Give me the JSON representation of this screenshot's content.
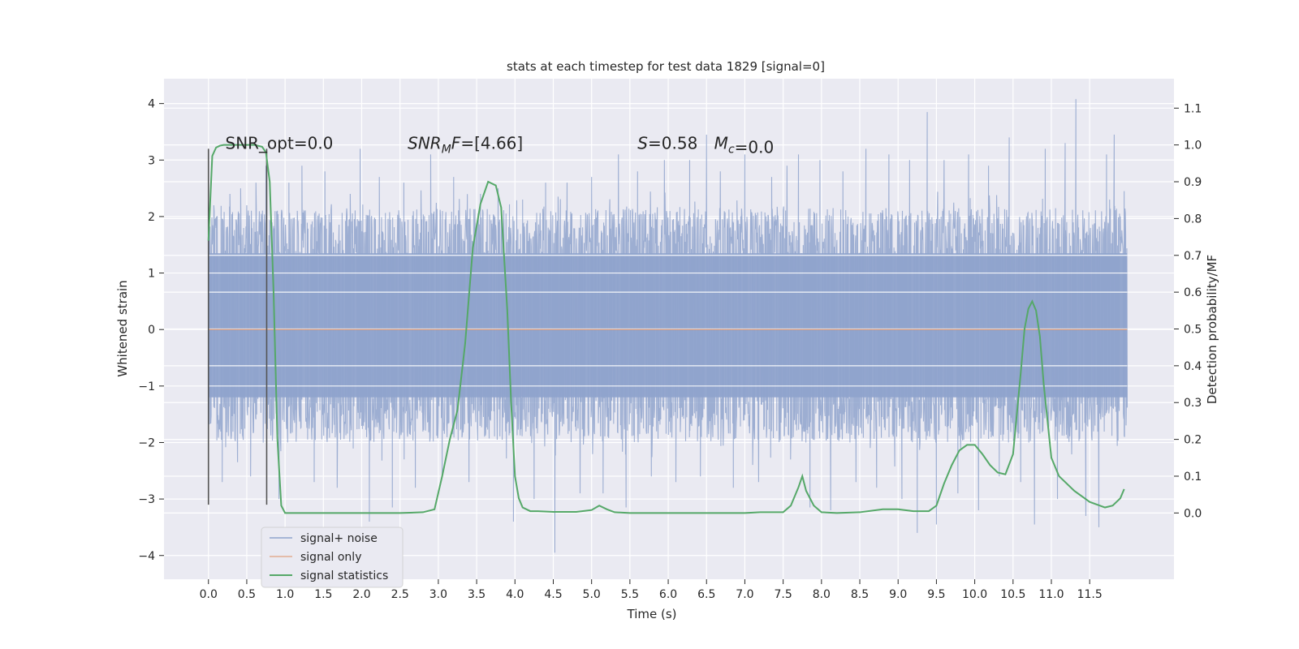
{
  "chart_data": {
    "type": "line",
    "title": "stats at each timestep for test data 1829 [signal=0]",
    "xlabel": "Time (s)",
    "ylabel": "Whitened strain",
    "y2label": "Detection probability/MF",
    "xlim": [
      -0.58,
      12.6
    ],
    "ylim": [
      -4.42,
      4.44
    ],
    "y2lim": [
      -0.18,
      1.18
    ],
    "x_ticks": [
      0.0,
      0.5,
      1.0,
      1.5,
      2.0,
      2.5,
      3.0,
      3.5,
      4.0,
      4.5,
      5.0,
      5.5,
      6.0,
      6.5,
      7.0,
      7.5,
      8.0,
      8.5,
      9.0,
      9.5,
      10.0,
      10.5,
      11.0,
      11.5
    ],
    "x_tick_labels": [
      "0.0",
      "0.5",
      "1.0",
      "1.5",
      "2.0",
      "2.5",
      "3.0",
      "3.5",
      "4.0",
      "4.5",
      "5.0",
      "5.5",
      "6.0",
      "6.5",
      "7.0",
      "7.5",
      "8.0",
      "8.5",
      "9.0",
      "9.5",
      "10.0",
      "10.5",
      "11.0",
      "11.5"
    ],
    "y_ticks": [
      4,
      3,
      2,
      1,
      0,
      -1,
      -2,
      -3,
      -4
    ],
    "y_tick_labels": [
      "4",
      "3",
      "2",
      "1",
      "0",
      "−1",
      "−2",
      "−3",
      "−4"
    ],
    "y2_ticks": [
      1.1,
      1.0,
      0.9,
      0.8,
      0.7,
      0.6,
      0.5,
      0.4,
      0.3,
      0.2,
      0.1,
      0.0
    ],
    "y2_tick_labels": [
      "1.1",
      "1.0",
      "0.9",
      "0.8",
      "0.7",
      "0.6",
      "0.5",
      "0.4",
      "0.3",
      "0.2",
      "0.1",
      "0.0"
    ],
    "grid": true,
    "legend_placement": "lower-left",
    "series": [
      {
        "name": "signal+ noise",
        "color": "#8fa3cc",
        "x_range": [
          0.0,
          11.99
        ],
        "band": {
          "core_min": -1.2,
          "core_max": 1.35,
          "spike_min": -3.95,
          "spike_max": 4.08
        },
        "spikes": [
          {
            "x": 0.07,
            "y": 2.2
          },
          {
            "x": 0.18,
            "y": -2.7
          },
          {
            "x": 0.28,
            "y": 2.4
          },
          {
            "x": 0.42,
            "y": 2.5
          },
          {
            "x": 0.55,
            "y": -2.6
          },
          {
            "x": 0.62,
            "y": 2.6
          },
          {
            "x": 0.75,
            "y": 2.9
          },
          {
            "x": 0.92,
            "y": -3.0
          },
          {
            "x": 1.05,
            "y": 2.6
          },
          {
            "x": 1.22,
            "y": 2.9
          },
          {
            "x": 1.38,
            "y": -2.7
          },
          {
            "x": 1.52,
            "y": 2.8
          },
          {
            "x": 1.68,
            "y": -2.8
          },
          {
            "x": 1.85,
            "y": 2.4
          },
          {
            "x": 1.98,
            "y": 3.2
          },
          {
            "x": 2.1,
            "y": -3.4
          },
          {
            "x": 2.23,
            "y": 2.7
          },
          {
            "x": 2.4,
            "y": -3.15
          },
          {
            "x": 2.55,
            "y": 2.6
          },
          {
            "x": 2.7,
            "y": -2.8
          },
          {
            "x": 2.9,
            "y": 3.1
          },
          {
            "x": 3.05,
            "y": -2.6
          },
          {
            "x": 3.2,
            "y": 2.7
          },
          {
            "x": 3.4,
            "y": -2.7
          },
          {
            "x": 3.55,
            "y": 2.4
          },
          {
            "x": 3.78,
            "y": 2.5
          },
          {
            "x": 3.98,
            "y": -3.4
          },
          {
            "x": 4.1,
            "y": 2.3
          },
          {
            "x": 4.25,
            "y": -3.0
          },
          {
            "x": 4.4,
            "y": 2.6
          },
          {
            "x": 4.52,
            "y": -3.95
          },
          {
            "x": 4.68,
            "y": 2.6
          },
          {
            "x": 4.85,
            "y": -2.9
          },
          {
            "x": 5.0,
            "y": 2.7
          },
          {
            "x": 5.15,
            "y": -2.9
          },
          {
            "x": 5.35,
            "y": 3.1
          },
          {
            "x": 5.45,
            "y": -3.15
          },
          {
            "x": 5.6,
            "y": 2.8
          },
          {
            "x": 5.78,
            "y": -2.6
          },
          {
            "x": 5.95,
            "y": 3.0
          },
          {
            "x": 6.1,
            "y": -2.7
          },
          {
            "x": 6.28,
            "y": 3.0
          },
          {
            "x": 6.42,
            "y": -2.6
          },
          {
            "x": 6.5,
            "y": 3.45
          },
          {
            "x": 6.68,
            "y": 2.8
          },
          {
            "x": 6.85,
            "y": -2.8
          },
          {
            "x": 7.0,
            "y": 3.1
          },
          {
            "x": 7.18,
            "y": -2.7
          },
          {
            "x": 7.35,
            "y": 2.7
          },
          {
            "x": 7.55,
            "y": 2.9
          },
          {
            "x": 7.7,
            "y": 3.1
          },
          {
            "x": 7.85,
            "y": -3.15
          },
          {
            "x": 7.98,
            "y": 3.0
          },
          {
            "x": 8.12,
            "y": -3.2
          },
          {
            "x": 8.28,
            "y": 2.8
          },
          {
            "x": 8.45,
            "y": -2.7
          },
          {
            "x": 8.58,
            "y": 3.2
          },
          {
            "x": 8.72,
            "y": -2.8
          },
          {
            "x": 8.88,
            "y": 3.1
          },
          {
            "x": 9.05,
            "y": -3.0
          },
          {
            "x": 9.15,
            "y": 3.0
          },
          {
            "x": 9.25,
            "y": -3.6
          },
          {
            "x": 9.38,
            "y": 3.85
          },
          {
            "x": 9.5,
            "y": -3.45
          },
          {
            "x": 9.6,
            "y": 3.0
          },
          {
            "x": 9.78,
            "y": -2.9
          },
          {
            "x": 9.92,
            "y": 3.1
          },
          {
            "x": 10.05,
            "y": -3.2
          },
          {
            "x": 10.18,
            "y": 2.9
          },
          {
            "x": 10.32,
            "y": -2.6
          },
          {
            "x": 10.45,
            "y": 3.4
          },
          {
            "x": 10.6,
            "y": -2.7
          },
          {
            "x": 10.78,
            "y": -3.45
          },
          {
            "x": 10.92,
            "y": 3.2
          },
          {
            "x": 11.08,
            "y": -3.0
          },
          {
            "x": 11.18,
            "y": 3.3
          },
          {
            "x": 11.32,
            "y": 4.08
          },
          {
            "x": 11.45,
            "y": -3.3
          },
          {
            "x": 11.62,
            "y": -3.5
          },
          {
            "x": 11.72,
            "y": 3.1
          },
          {
            "x": 11.82,
            "y": 3.45
          },
          {
            "x": 11.95,
            "y": 2.45
          }
        ]
      },
      {
        "name": "signal only",
        "color": "#dd8452",
        "axis": "left",
        "x": [
          0.0,
          11.99
        ],
        "y": [
          0.0,
          0.0
        ]
      },
      {
        "name": "signal statistics",
        "color": "#55a868",
        "axis": "right",
        "x": [
          0.0,
          0.05,
          0.1,
          0.15,
          0.2,
          0.3,
          0.4,
          0.5,
          0.6,
          0.7,
          0.75,
          0.8,
          0.85,
          0.9,
          0.95,
          1.0,
          1.5,
          2.0,
          2.5,
          2.8,
          2.95,
          3.05,
          3.15,
          3.25,
          3.35,
          3.45,
          3.55,
          3.65,
          3.75,
          3.82,
          3.9,
          3.95,
          4.0,
          4.05,
          4.1,
          4.2,
          4.3,
          4.5,
          4.8,
          5.0,
          5.1,
          5.2,
          5.3,
          5.5,
          6.0,
          6.5,
          7.0,
          7.2,
          7.5,
          7.6,
          7.7,
          7.75,
          7.8,
          7.9,
          8.0,
          8.2,
          8.5,
          8.8,
          9.0,
          9.2,
          9.4,
          9.5,
          9.6,
          9.7,
          9.8,
          9.9,
          10.0,
          10.1,
          10.2,
          10.3,
          10.4,
          10.5,
          10.6,
          10.65,
          10.7,
          10.75,
          10.8,
          10.85,
          10.9,
          11.0,
          11.1,
          11.3,
          11.5,
          11.7,
          11.8,
          11.9,
          11.95
        ],
        "y": [
          0.74,
          0.97,
          0.993,
          0.998,
          1.0,
          1.0,
          1.0,
          1.0,
          1.0,
          0.995,
          0.98,
          0.9,
          0.6,
          0.2,
          0.02,
          0.0,
          0.0,
          0.0,
          0.0,
          0.002,
          0.01,
          0.1,
          0.2,
          0.28,
          0.46,
          0.72,
          0.84,
          0.9,
          0.89,
          0.83,
          0.55,
          0.3,
          0.1,
          0.04,
          0.015,
          0.005,
          0.005,
          0.003,
          0.003,
          0.008,
          0.02,
          0.01,
          0.002,
          0.0,
          0.0,
          0.0,
          0.0,
          0.002,
          0.002,
          0.02,
          0.07,
          0.1,
          0.06,
          0.02,
          0.002,
          0.0,
          0.002,
          0.01,
          0.01,
          0.005,
          0.005,
          0.02,
          0.08,
          0.13,
          0.17,
          0.185,
          0.185,
          0.16,
          0.13,
          0.11,
          0.105,
          0.16,
          0.38,
          0.5,
          0.555,
          0.575,
          0.55,
          0.48,
          0.35,
          0.15,
          0.1,
          0.06,
          0.03,
          0.015,
          0.02,
          0.04,
          0.065
        ]
      }
    ],
    "vlines": [
      {
        "x": 0.0,
        "y": [
          -3.1,
          3.2
        ]
      },
      {
        "x": 0.76,
        "y": [
          -3.1,
          3.2
        ]
      }
    ],
    "annotations": [
      {
        "x": 0.22,
        "y": 3.2,
        "prefix": "SNR_opt=",
        "value": "0.0",
        "style": "plain"
      },
      {
        "x": 2.6,
        "y": 3.2,
        "symbol": "SNR",
        "sub": "M",
        "tail": "F",
        "prefix": "=[",
        "value": "4.66",
        "suffix": "]",
        "style": "math"
      },
      {
        "x": 5.6,
        "y": 3.2,
        "symbol": "S",
        "prefix": "=",
        "value": "0.58",
        "style": "math"
      },
      {
        "x": 6.6,
        "y": 3.2,
        "symbol": "M",
        "sub": "c",
        "prefix": "=",
        "value": "0.0",
        "style": "math"
      }
    ]
  }
}
